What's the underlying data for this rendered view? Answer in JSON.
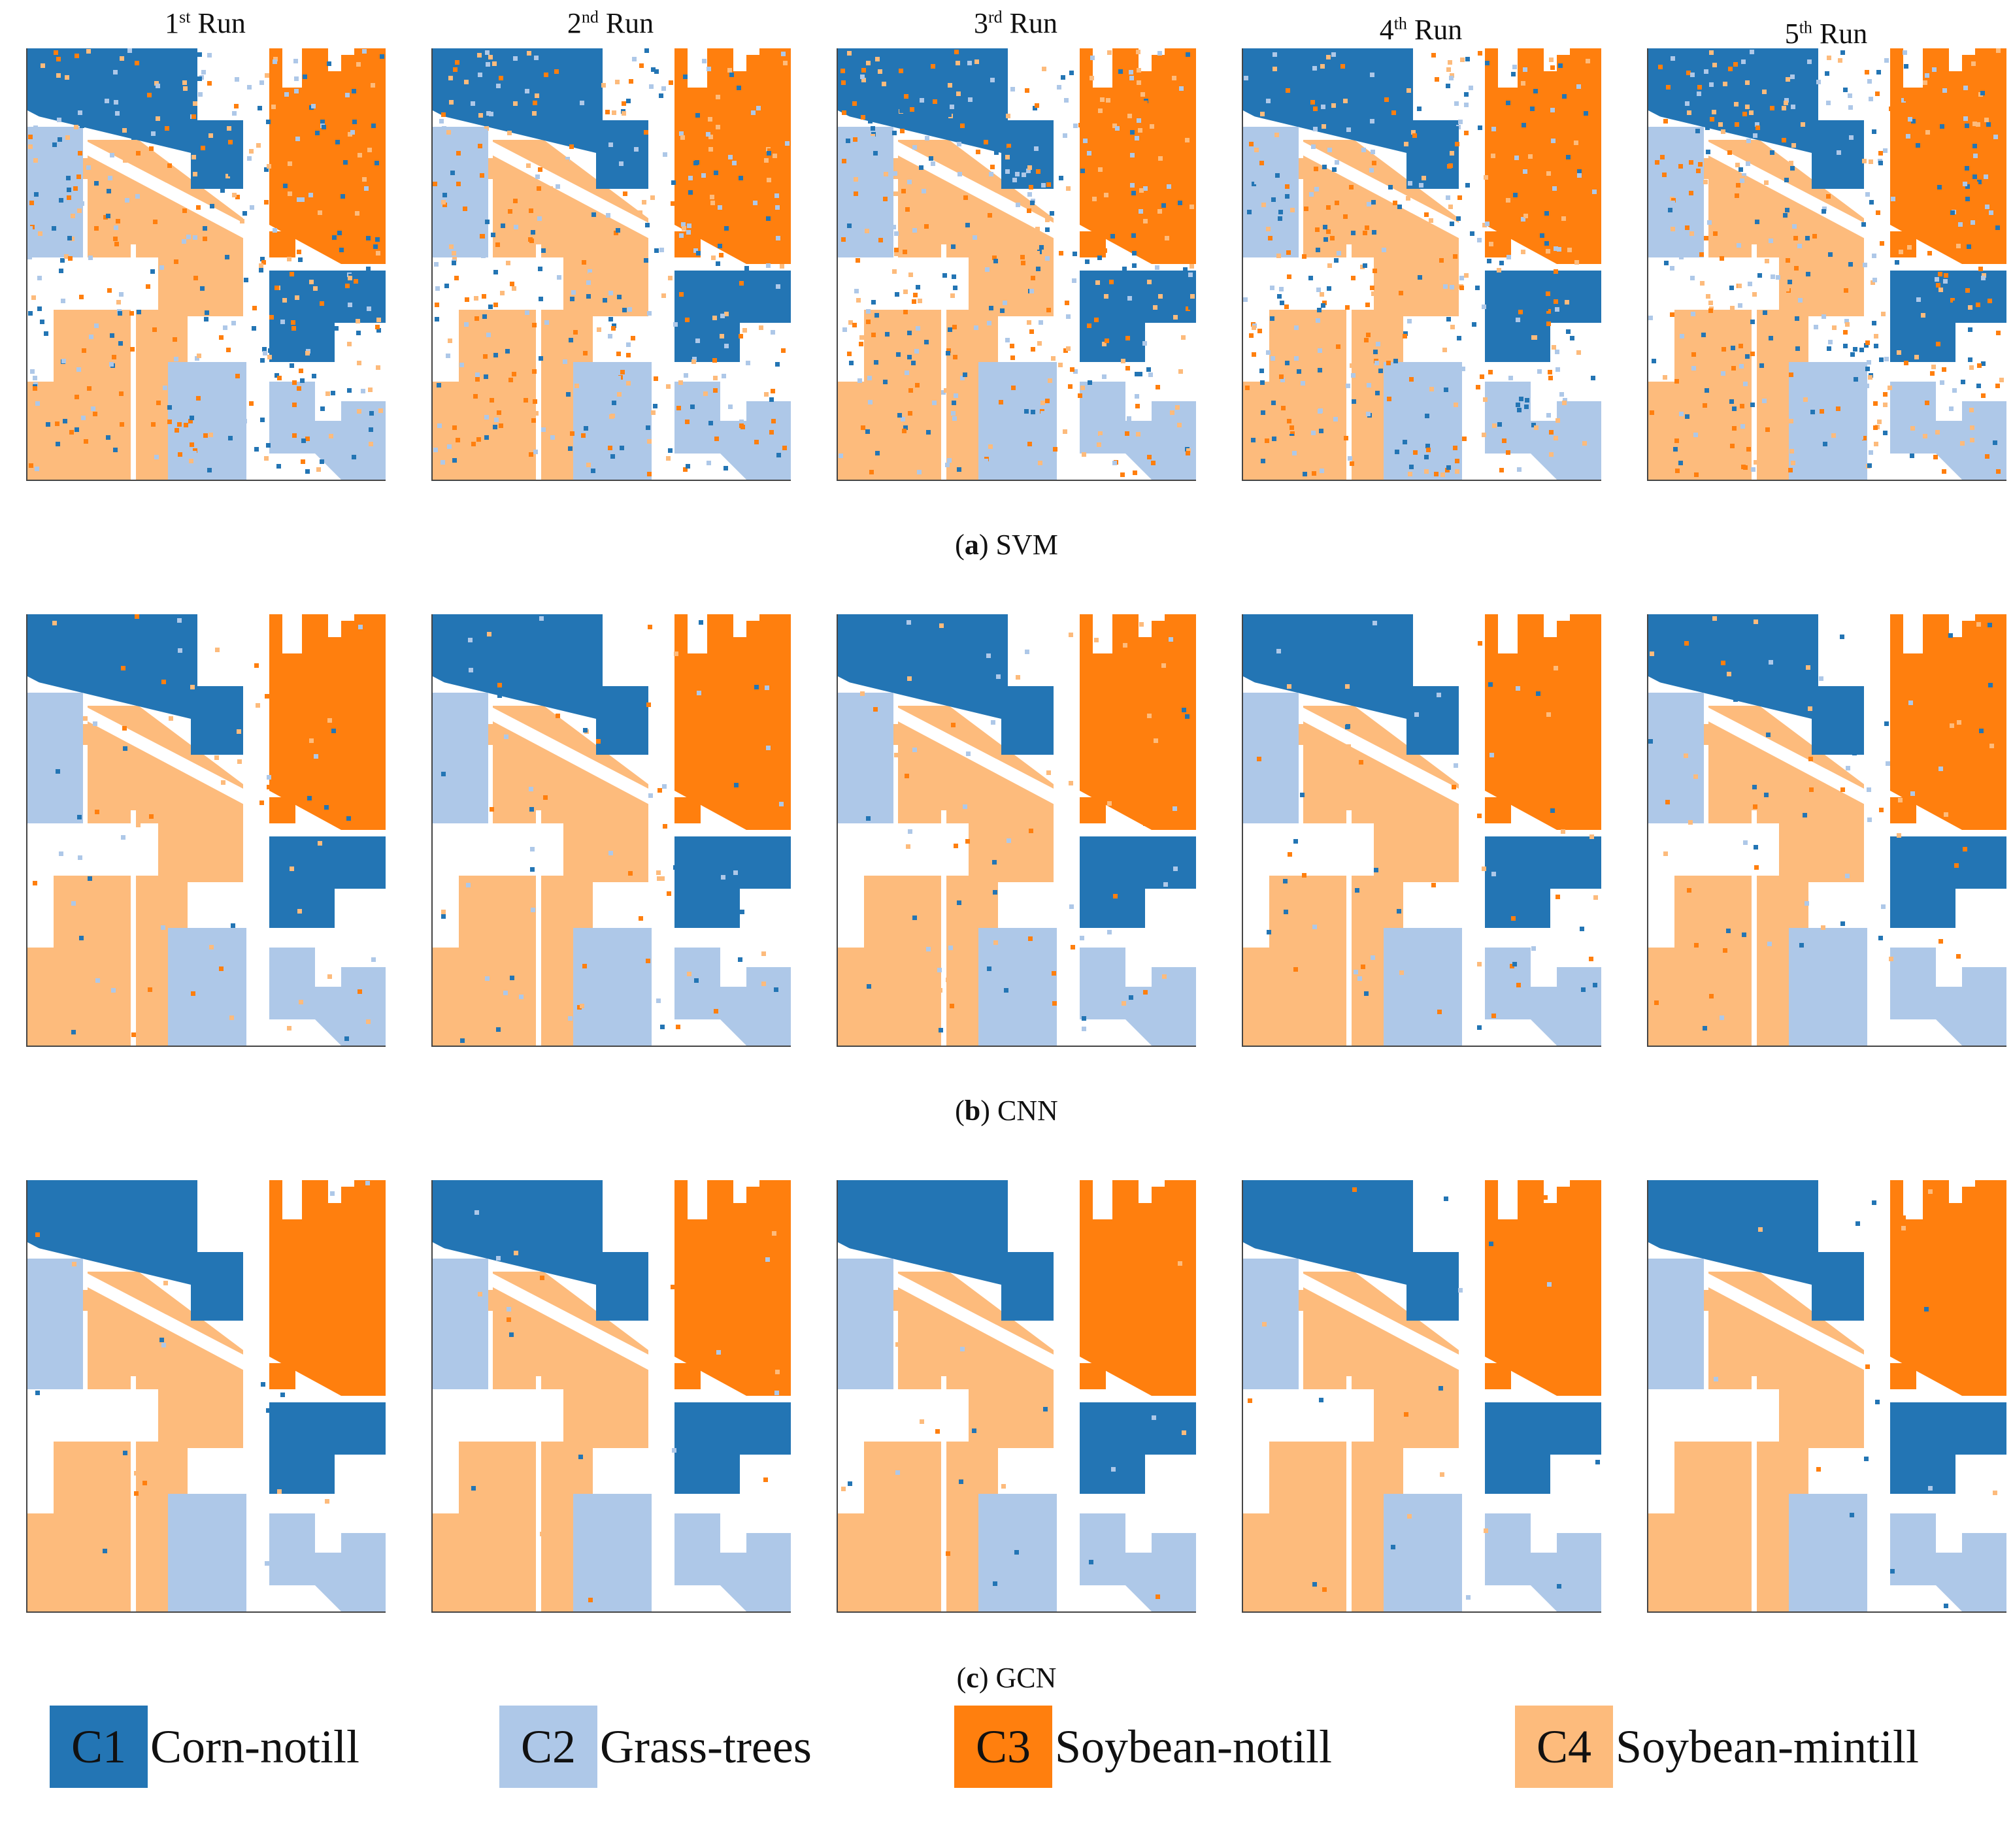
{
  "column_titles": [
    {
      "base": "1",
      "sup": "st",
      "rest": " Run"
    },
    {
      "base": "2",
      "sup": "nd",
      "rest": " Run"
    },
    {
      "base": "3",
      "sup": "rd",
      "rest": " Run"
    },
    {
      "base": "4",
      "sup": "th",
      "rest": " Run"
    },
    {
      "base": "5",
      "sup": "th",
      "rest": " Run"
    }
  ],
  "rows": [
    {
      "letter": "a",
      "method": "SVM",
      "noise": "high"
    },
    {
      "letter": "b",
      "method": "CNN",
      "noise": "medium"
    },
    {
      "letter": "c",
      "method": "GCN",
      "noise": "low"
    }
  ],
  "legend": [
    {
      "code": "C1",
      "label": "Corn-notill",
      "color": "#2375b4"
    },
    {
      "code": "C2",
      "label": "Grass-trees",
      "color": "#aec8e8"
    },
    {
      "code": "C3",
      "label": "Soybean-notill",
      "color": "#ff7f0e"
    },
    {
      "code": "C4",
      "label": "Soybean-mintill",
      "color": "#fdbb7c"
    }
  ]
}
